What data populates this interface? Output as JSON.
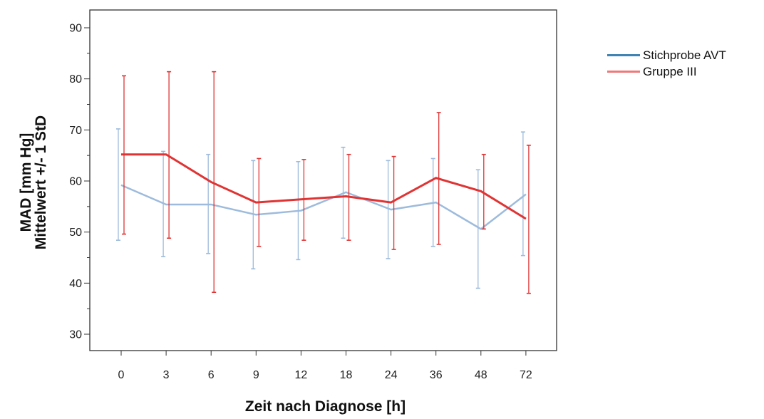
{
  "chart_data": {
    "type": "line",
    "xlabel": "Zeit nach Diagnose [h]",
    "ylabel_lines": [
      "MAD [mm Hg]",
      "Mittelwert +/- 1 StD"
    ],
    "categories": [
      "0",
      "3",
      "6",
      "9",
      "12",
      "18",
      "24",
      "36",
      "48",
      "72"
    ],
    "ylim": [
      26,
      93
    ],
    "yticks": [
      30,
      40,
      50,
      60,
      70,
      80,
      90
    ],
    "grid": false,
    "legend_position": "right",
    "series": [
      {
        "name": "Stichprobe AVT",
        "color": "#9dbbdc",
        "legend_color": "#3d83b3",
        "mean": [
          59.2,
          55.4,
          55.4,
          53.4,
          54.2,
          57.8,
          54.4,
          55.8,
          50.6,
          57.4
        ],
        "lower": [
          48.4,
          45.2,
          45.8,
          42.8,
          44.6,
          48.8,
          44.8,
          47.2,
          39.0,
          45.4
        ],
        "upper": [
          70.2,
          65.8,
          65.2,
          64.0,
          63.8,
          66.6,
          64.0,
          64.4,
          62.2,
          69.6
        ]
      },
      {
        "name": "Gruppe III",
        "color": "#e03434",
        "legend_color": "#f07878",
        "mean": [
          65.2,
          65.2,
          59.8,
          55.8,
          56.4,
          57.0,
          55.8,
          60.6,
          58.0,
          52.6
        ],
        "lower": [
          49.6,
          48.8,
          38.2,
          47.2,
          48.4,
          48.4,
          46.6,
          47.6,
          50.6,
          38.0
        ],
        "upper": [
          80.6,
          81.4,
          81.4,
          64.4,
          64.2,
          65.2,
          64.8,
          73.4,
          65.2,
          67.0
        ]
      }
    ]
  }
}
